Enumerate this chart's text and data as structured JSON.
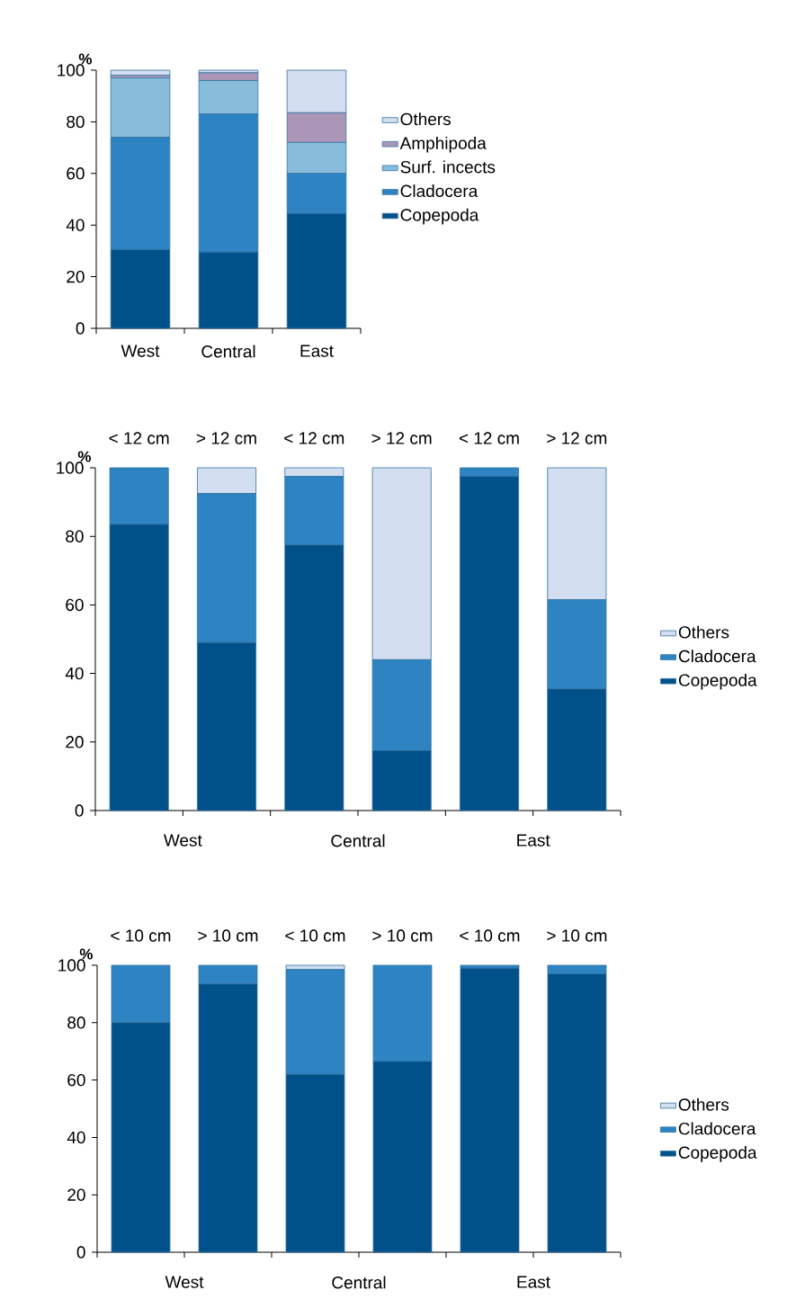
{
  "chart_data": [
    {
      "type": "bar",
      "stacked": true,
      "ylabel": "%",
      "categories": [
        "West",
        "Central",
        "East"
      ],
      "ylim": [
        0,
        100
      ],
      "yticks": [
        0,
        20,
        40,
        60,
        80,
        100
      ],
      "legend": "right",
      "series": [
        {
          "name": "Copepoda",
          "color": "#00508a",
          "values": [
            30.5,
            29.5,
            44.5
          ]
        },
        {
          "name": "Cladocera",
          "color": "#2e84c3",
          "values": [
            43.5,
            53.5,
            15.5
          ]
        },
        {
          "name": "Surf. incects",
          "color": "#88bcdb",
          "values": [
            23,
            13,
            12
          ]
        },
        {
          "name": "Amphipoda",
          "color": "#ac96b8",
          "values": [
            1,
            3,
            11.5
          ]
        },
        {
          "name": "Others",
          "color": "#d3dff0",
          "values": [
            2,
            1,
            16.5
          ]
        }
      ]
    },
    {
      "type": "bar",
      "stacked": true,
      "ylabel": "%",
      "categories": [
        "< 12 cm",
        "> 12 cm",
        "< 12 cm",
        "> 12 cm",
        "< 12 cm",
        "> 12 cm"
      ],
      "annotations": [
        "West",
        "Central",
        "East"
      ],
      "ylim": [
        0,
        100
      ],
      "yticks": [
        0,
        20,
        40,
        60,
        80,
        100
      ],
      "legend": "right",
      "series": [
        {
          "name": "Copepoda",
          "color": "#00508a",
          "values": [
            83.5,
            49,
            77.5,
            17.5,
            97.5,
            35.5
          ]
        },
        {
          "name": "Cladocera",
          "color": "#2e84c3",
          "values": [
            16.5,
            43.5,
            20,
            26.5,
            2.5,
            26
          ]
        },
        {
          "name": "Others",
          "color": "#d3dff0",
          "values": [
            0,
            7.5,
            2.5,
            56,
            0,
            38.5
          ]
        }
      ]
    },
    {
      "type": "bar",
      "stacked": true,
      "ylabel": "%",
      "categories": [
        "< 10 cm",
        "> 10 cm",
        "< 10 cm",
        "> 10 cm",
        "< 10 cm",
        "> 10 cm"
      ],
      "annotations": [
        "West",
        "Central",
        "East"
      ],
      "ylim": [
        0,
        100
      ],
      "yticks": [
        0,
        20,
        40,
        60,
        80,
        100
      ],
      "legend": "right",
      "series": [
        {
          "name": "Copepoda",
          "color": "#00508a",
          "values": [
            80,
            93.5,
            62,
            66.5,
            99,
            97
          ]
        },
        {
          "name": "Cladocera",
          "color": "#2e84c3",
          "values": [
            20,
            6.5,
            36.5,
            33.5,
            1,
            3
          ]
        },
        {
          "name": "Others",
          "color": "#d3dff0",
          "values": [
            0,
            0,
            1.5,
            0,
            0,
            0
          ]
        }
      ]
    }
  ]
}
